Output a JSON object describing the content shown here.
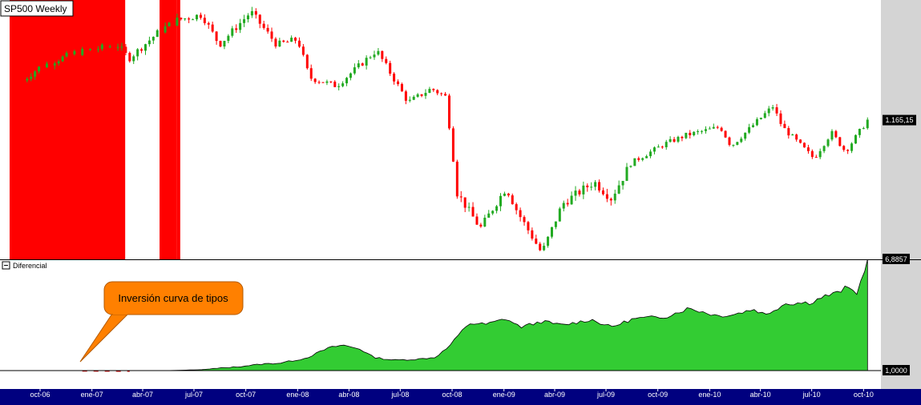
{
  "title": "SP500 Weekly",
  "price_label": "1.165,15",
  "lower_panel": {
    "title": "Diferencial",
    "top_label": "6,8857",
    "base_label": "1,0000"
  },
  "annotation": "Inversión curva de tipos",
  "x_labels": [
    "oct-06",
    "ene-07",
    "abr-07",
    "jul-07",
    "oct-07",
    "ene-08",
    "abr-08",
    "jul-08",
    "oct-08",
    "ene-09",
    "abr-09",
    "jul-09",
    "oct-09",
    "ene-10",
    "abr-10",
    "jul-10",
    "oct-10"
  ],
  "colors": {
    "up": "#22aa22",
    "down": "#ff0000",
    "shade": "#ff0000",
    "area": "#33cc33",
    "axis_bar": "#00007f",
    "right_strip": "#d4d4d4"
  },
  "chart_data": [
    {
      "type": "candlestick",
      "title": "SP500 Weekly",
      "frequency": "weekly",
      "x_range": [
        "2006-09",
        "2010-10"
      ],
      "y_range": [
        660,
        1580
      ],
      "last_value": 1165.15,
      "shaded_periods_label": "Inversión curva de tipos",
      "shaded_periods": [
        {
          "start": "2006-08",
          "end": "2007-03"
        },
        {
          "start": "2007-05",
          "end": "2007-06"
        },
        {
          "start": "2007-06",
          "end": "2007-06"
        }
      ],
      "close_path": [
        {
          "date": "2006-09-01",
          "close": 1310
        },
        {
          "date": "2006-10-01",
          "close": 1360
        },
        {
          "date": "2006-12-01",
          "close": 1410
        },
        {
          "date": "2007-02-15",
          "close": 1440
        },
        {
          "date": "2007-03-08",
          "close": 1390
        },
        {
          "date": "2007-05-01",
          "close": 1490
        },
        {
          "date": "2007-06-01",
          "close": 1530
        },
        {
          "date": "2007-07-15",
          "close": 1550
        },
        {
          "date": "2007-08-15",
          "close": 1440
        },
        {
          "date": "2007-10-10",
          "close": 1560
        },
        {
          "date": "2007-11-25",
          "close": 1440
        },
        {
          "date": "2008-01-01",
          "close": 1460
        },
        {
          "date": "2008-01-22",
          "close": 1320
        },
        {
          "date": "2008-03-10",
          "close": 1290
        },
        {
          "date": "2008-05-20",
          "close": 1420
        },
        {
          "date": "2008-07-15",
          "close": 1230
        },
        {
          "date": "2008-08-25",
          "close": 1280
        },
        {
          "date": "2008-09-20",
          "close": 1250
        },
        {
          "date": "2008-10-10",
          "close": 900
        },
        {
          "date": "2008-11-20",
          "close": 770
        },
        {
          "date": "2009-01-05",
          "close": 920
        },
        {
          "date": "2009-01-25",
          "close": 830
        },
        {
          "date": "2009-03-09",
          "close": 680
        },
        {
          "date": "2009-04-15",
          "close": 860
        },
        {
          "date": "2009-06-10",
          "close": 940
        },
        {
          "date": "2009-07-10",
          "close": 880
        },
        {
          "date": "2009-08-15",
          "close": 1010
        },
        {
          "date": "2009-10-15",
          "close": 1080
        },
        {
          "date": "2009-11-20",
          "close": 1110
        },
        {
          "date": "2010-01-20",
          "close": 1140
        },
        {
          "date": "2010-02-08",
          "close": 1070
        },
        {
          "date": "2010-04-23",
          "close": 1215
        },
        {
          "date": "2010-05-10",
          "close": 1140
        },
        {
          "date": "2010-07-05",
          "close": 1025
        },
        {
          "date": "2010-08-05",
          "close": 1120
        },
        {
          "date": "2010-08-30",
          "close": 1050
        },
        {
          "date": "2010-10-08",
          "close": 1165.15
        }
      ]
    },
    {
      "type": "area",
      "title": "Diferencial",
      "frequency": "weekly",
      "x_range": [
        "2006-09",
        "2010-10"
      ],
      "y_range": [
        1.0,
        6.8857
      ],
      "baseline": 1.0,
      "last_value": 6.8857,
      "points": [
        {
          "date": "2006-09-01",
          "value": 1.0
        },
        {
          "date": "2006-12-15",
          "value": 0.98
        },
        {
          "date": "2007-03-08",
          "value": 0.97
        },
        {
          "date": "2007-05-15",
          "value": 1.0
        },
        {
          "date": "2007-07-15",
          "value": 1.05
        },
        {
          "date": "2007-09-15",
          "value": 1.2
        },
        {
          "date": "2007-11-01",
          "value": 1.35
        },
        {
          "date": "2007-12-01",
          "value": 1.4
        },
        {
          "date": "2008-01-15",
          "value": 1.65
        },
        {
          "date": "2008-02-25",
          "value": 2.2
        },
        {
          "date": "2008-03-20",
          "value": 2.35
        },
        {
          "date": "2008-04-20",
          "value": 2.15
        },
        {
          "date": "2008-05-15",
          "value": 1.7
        },
        {
          "date": "2008-06-20",
          "value": 1.55
        },
        {
          "date": "2008-07-30",
          "value": 1.6
        },
        {
          "date": "2008-09-01",
          "value": 1.7
        },
        {
          "date": "2008-09-25",
          "value": 2.25
        },
        {
          "date": "2008-10-30",
          "value": 3.5
        },
        {
          "date": "2008-12-01",
          "value": 3.45
        },
        {
          "date": "2009-01-05",
          "value": 3.75
        },
        {
          "date": "2009-01-30",
          "value": 3.3
        },
        {
          "date": "2009-03-10",
          "value": 3.6
        },
        {
          "date": "2009-04-15",
          "value": 3.4
        },
        {
          "date": "2009-06-05",
          "value": 3.7
        },
        {
          "date": "2009-07-10",
          "value": 3.3
        },
        {
          "date": "2009-08-20",
          "value": 3.75
        },
        {
          "date": "2009-10-15",
          "value": 3.85
        },
        {
          "date": "2009-11-25",
          "value": 4.3
        },
        {
          "date": "2010-01-15",
          "value": 3.9
        },
        {
          "date": "2010-02-10",
          "value": 3.95
        },
        {
          "date": "2010-03-20",
          "value": 4.25
        },
        {
          "date": "2010-04-10",
          "value": 3.95
        },
        {
          "date": "2010-05-15",
          "value": 4.55
        },
        {
          "date": "2010-06-30",
          "value": 4.6
        },
        {
          "date": "2010-07-20",
          "value": 4.9
        },
        {
          "date": "2010-08-15",
          "value": 5.1
        },
        {
          "date": "2010-09-01",
          "value": 5.4
        },
        {
          "date": "2010-09-20",
          "value": 5.1
        },
        {
          "date": "2010-10-08",
          "value": 6.8857
        }
      ]
    }
  ]
}
